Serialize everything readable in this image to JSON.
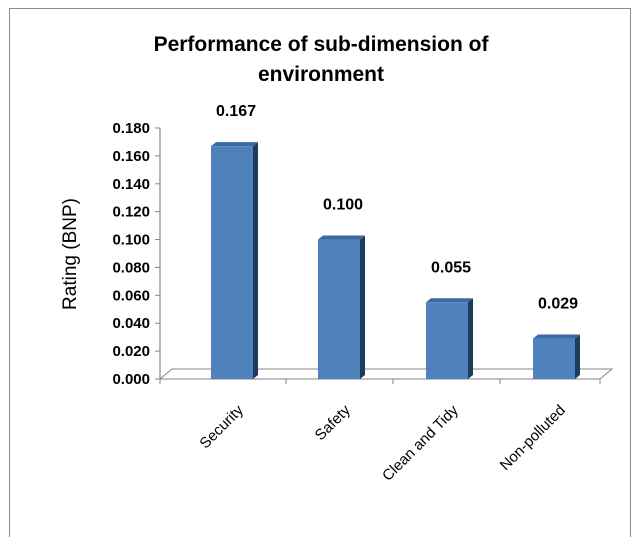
{
  "chart_data": {
    "type": "bar",
    "title": "Performance of sub-dimension of environment",
    "title_lines": [
      "Performance of sub-dimension of",
      "environment"
    ],
    "xlabel": "",
    "ylabel": "Rating (BNP)",
    "categories": [
      "Security",
      "Safety",
      "Clean and Tidy",
      "Non-polluted"
    ],
    "values": [
      0.167,
      0.1,
      0.055,
      0.029
    ],
    "data_labels": [
      "0.167",
      "0.100",
      "0.055",
      "0.029"
    ],
    "ylim": [
      0,
      0.18
    ],
    "yticks": [
      "0.000",
      "0.020",
      "0.040",
      "0.060",
      "0.080",
      "0.100",
      "0.120",
      "0.140",
      "0.160",
      "0.180"
    ],
    "grid": false,
    "legend": "none",
    "bar_style": "3d",
    "colors": {
      "bar_front": "#4f81bd",
      "bar_side": "#1f3b5e",
      "bar_top": "#3a6aa0",
      "axis": "#868686"
    }
  }
}
